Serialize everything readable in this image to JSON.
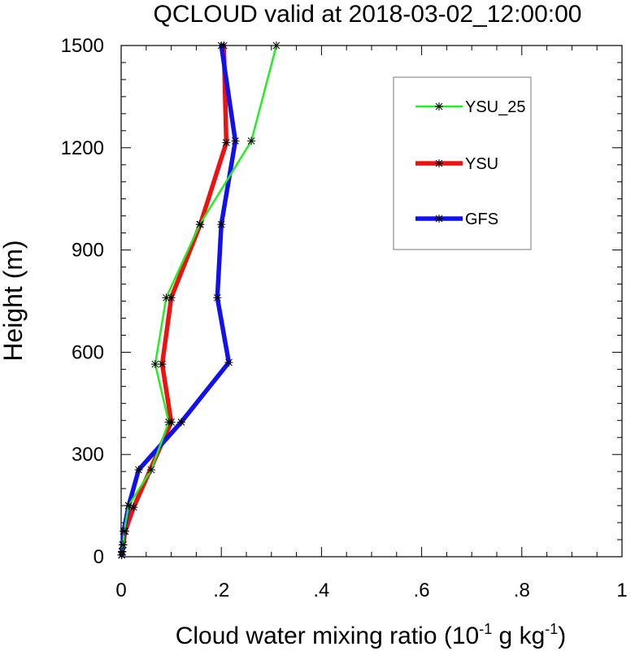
{
  "chart_data": {
    "type": "line",
    "title": "QCLOUD valid at 2018-03-02_12:00:00",
    "xlabel_main": "Cloud water mixing ratio (10",
    "xlabel_exp1": "-1",
    "xlabel_mid": " g kg",
    "xlabel_exp2": "-1",
    "xlabel_end": ")",
    "ylabel": "Height (m)",
    "xlim": [
      0,
      1
    ],
    "ylim": [
      0,
      1500
    ],
    "x_ticks": [
      0,
      0.2,
      0.4,
      0.6,
      0.8,
      1
    ],
    "x_tick_labels": [
      "0",
      ".2",
      ".4",
      ".6",
      ".8",
      "1"
    ],
    "y_ticks": [
      0,
      300,
      600,
      900,
      1200,
      1500
    ],
    "y_tick_labels": [
      "0",
      "300",
      "600",
      "900",
      "1200",
      "1500"
    ],
    "legend_position": "top-right",
    "series": [
      {
        "name": "YSU_25",
        "color": "#22ee22",
        "points": [
          [
            0.001,
            5
          ],
          [
            0.002,
            15
          ],
          [
            0.004,
            35
          ],
          [
            0.006,
            75
          ],
          [
            0.015,
            150
          ],
          [
            0.06,
            255
          ],
          [
            0.095,
            395
          ],
          [
            0.068,
            565
          ],
          [
            0.09,
            760
          ],
          [
            0.157,
            975
          ],
          [
            0.26,
            1220
          ],
          [
            0.31,
            1500
          ]
        ]
      },
      {
        "name": "YSU",
        "color": "#ee1111",
        "points": [
          [
            0.001,
            5
          ],
          [
            0.002,
            15
          ],
          [
            0.004,
            35
          ],
          [
            0.008,
            75
          ],
          [
            0.025,
            145
          ],
          [
            0.1,
            395
          ],
          [
            0.082,
            565
          ],
          [
            0.1,
            760
          ],
          [
            0.158,
            975
          ],
          [
            0.21,
            1215
          ],
          [
            0.205,
            1500
          ]
        ]
      },
      {
        "name": "GFS",
        "color": "#1111ee",
        "points": [
          [
            0.001,
            5
          ],
          [
            0.002,
            15
          ],
          [
            0.003,
            35
          ],
          [
            0.005,
            75
          ],
          [
            0.015,
            150
          ],
          [
            0.035,
            255
          ],
          [
            0.12,
            395
          ],
          [
            0.215,
            570
          ],
          [
            0.192,
            760
          ],
          [
            0.2,
            975
          ],
          [
            0.228,
            1220
          ],
          [
            0.2,
            1500
          ]
        ]
      }
    ]
  }
}
